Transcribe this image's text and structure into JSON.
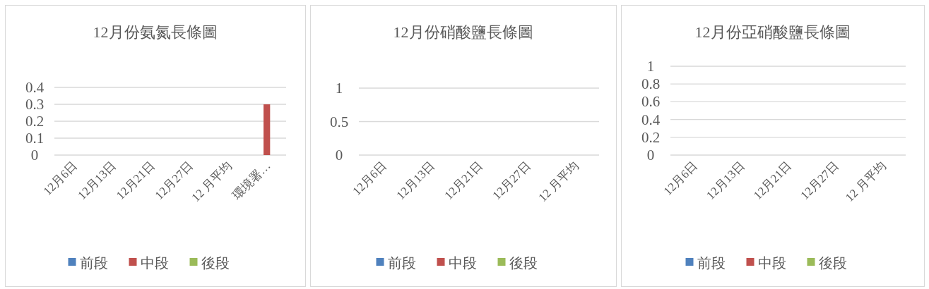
{
  "chart_data": [
    {
      "type": "bar",
      "title": "12月份氨氮長條圖",
      "categories": [
        "12月6日",
        "12月13日",
        "12月21日",
        "12月27日",
        "12 月平均",
        "環境署…"
      ],
      "series": [
        {
          "name": "前段",
          "color": "#4f81bd",
          "values": [
            0,
            0,
            0,
            0,
            0,
            0
          ]
        },
        {
          "name": "中段",
          "color": "#c0504d",
          "values": [
            0,
            0,
            0,
            0,
            0,
            0.3
          ]
        },
        {
          "name": "後段",
          "color": "#9bbb59",
          "values": [
            0,
            0,
            0,
            0,
            0,
            0
          ]
        }
      ],
      "ylim": [
        0,
        0.4
      ],
      "yticks": [
        0,
        0.1,
        0.2,
        0.3,
        0.4
      ],
      "grid": "y",
      "legend": "bottom"
    },
    {
      "type": "bar",
      "title": "12月份硝酸鹽長條圖",
      "categories": [
        "12月6日",
        "12月13日",
        "12月21日",
        "12月27日",
        "12 月平均"
      ],
      "series": [
        {
          "name": "前段",
          "color": "#4f81bd",
          "values": [
            0,
            0,
            0,
            0,
            0
          ]
        },
        {
          "name": "中段",
          "color": "#c0504d",
          "values": [
            0,
            0,
            0,
            0,
            0
          ]
        },
        {
          "name": "後段",
          "color": "#9bbb59",
          "values": [
            0,
            0,
            0,
            0,
            0
          ]
        }
      ],
      "ylim": [
        0,
        1
      ],
      "yticks": [
        0,
        0.5,
        1
      ],
      "grid": "y",
      "legend": "bottom"
    },
    {
      "type": "bar",
      "title": "12月份亞硝酸鹽長條圖",
      "categories": [
        "12月6日",
        "12月13日",
        "12月21日",
        "12月27日",
        "12 月平均"
      ],
      "series": [
        {
          "name": "前段",
          "color": "#4f81bd",
          "values": [
            0,
            0,
            0,
            0,
            0
          ]
        },
        {
          "name": "中段",
          "color": "#c0504d",
          "values": [
            0,
            0,
            0,
            0,
            0
          ]
        },
        {
          "name": "後段",
          "color": "#9bbb59",
          "values": [
            0,
            0,
            0,
            0,
            0
          ]
        }
      ],
      "ylim": [
        0,
        1
      ],
      "yticks": [
        0,
        0.2,
        0.4,
        0.6,
        0.8,
        1
      ],
      "grid": "y",
      "legend": "bottom"
    }
  ]
}
